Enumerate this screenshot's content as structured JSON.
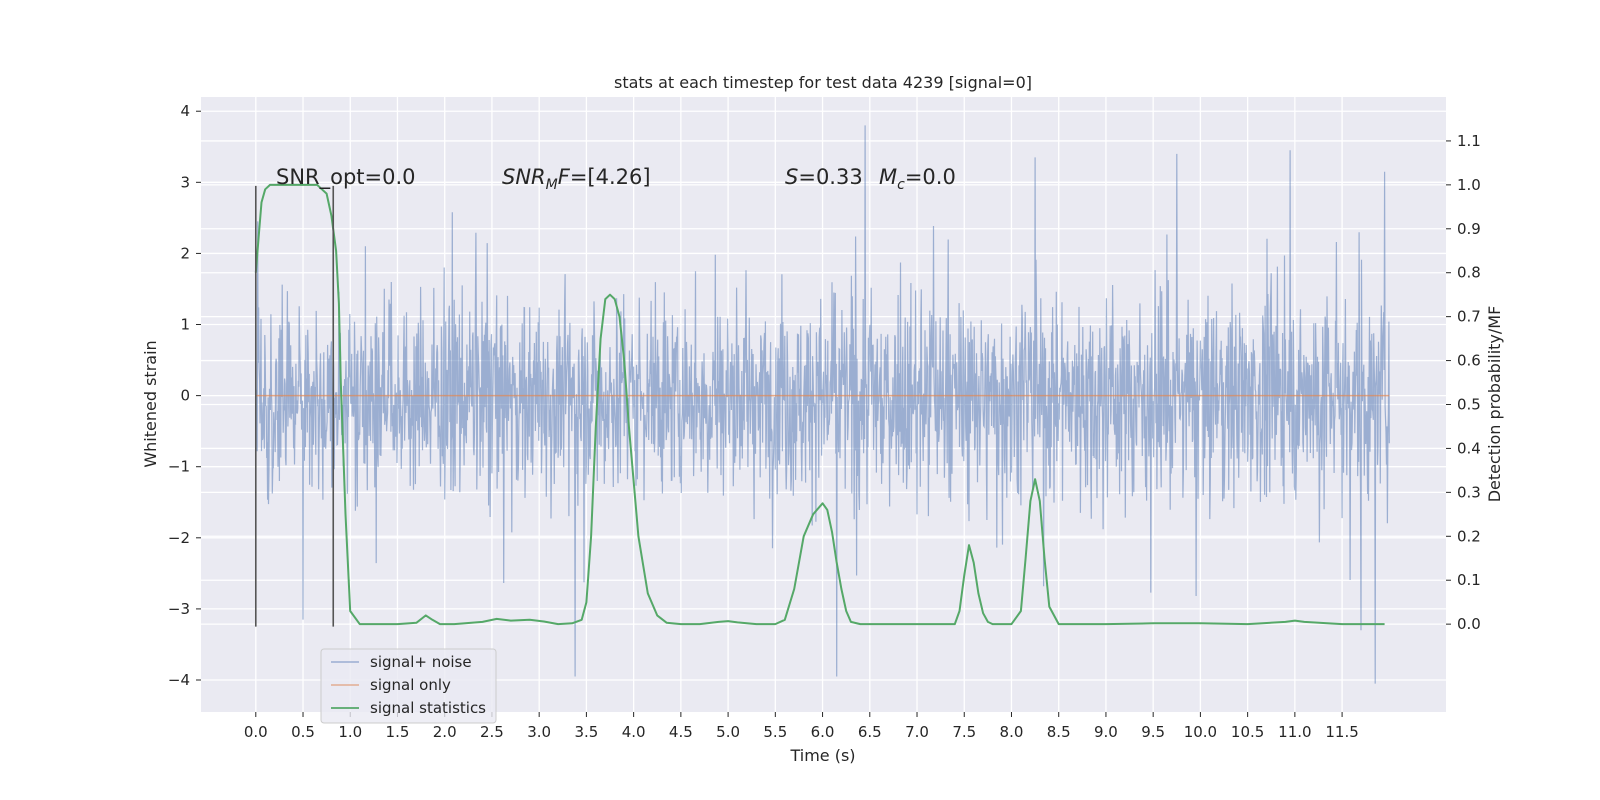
{
  "chart_data": {
    "type": "line",
    "title": "stats at each timestep for test data 4239 [signal=0]",
    "xlabel": "Time (s)",
    "ylabel": "Whitened strain",
    "y2label": "Detection probability/MF",
    "xlim": [
      -0.58,
      12.6
    ],
    "ylim": [
      -4.45,
      4.2
    ],
    "y2lim": [
      -0.2,
      1.2
    ],
    "x_ticks": [
      0.0,
      0.5,
      1.0,
      1.5,
      2.0,
      2.5,
      3.0,
      3.5,
      4.0,
      4.5,
      5.0,
      5.5,
      6.0,
      6.5,
      7.0,
      7.5,
      8.0,
      8.5,
      9.0,
      9.5,
      10.0,
      10.5,
      11.0,
      11.5
    ],
    "x_tick_labels": [
      "0.0",
      "0.5",
      "1.0",
      "1.5",
      "2.0",
      "2.5",
      "3.0",
      "3.5",
      "4.0",
      "4.5",
      "5.0",
      "5.5",
      "6.0",
      "6.5",
      "7.0",
      "7.5",
      "8.0",
      "8.5",
      "9.0",
      "9.5",
      "10.0",
      "10.5",
      "11.0",
      "11.5"
    ],
    "y_ticks": [
      -4,
      -3,
      -2,
      -1,
      0,
      1,
      2,
      3,
      4
    ],
    "y_tick_labels": [
      "−4",
      "−3",
      "−2",
      "−1",
      "0",
      "1",
      "2",
      "3",
      "4"
    ],
    "y2_ticks": [
      0.0,
      0.1,
      0.2,
      0.3,
      0.4,
      0.5,
      0.6,
      0.7,
      0.8,
      0.9,
      1.0,
      1.1
    ],
    "y2_tick_labels": [
      "0.0",
      "0.1",
      "0.2",
      "0.3",
      "0.4",
      "0.5",
      "0.6",
      "0.7",
      "0.8",
      "0.9",
      "1.0",
      "1.1"
    ],
    "grid": true,
    "legend_position": "lower-left",
    "series": [
      {
        "name": "signal+ noise",
        "axis": "left",
        "style": "noise",
        "color": "#4c72b0",
        "x_range": [
          0.0,
          12.0
        ],
        "approx_envelope": [
          -2.2,
          2.2
        ],
        "notable_peaks": [
          [
            6.45,
            3.8
          ],
          [
            9.75,
            3.4
          ],
          [
            10.95,
            3.45
          ],
          [
            11.95,
            3.15
          ],
          [
            8.25,
            3.35
          ]
        ],
        "notable_troughs": [
          [
            3.38,
            -3.95
          ],
          [
            6.15,
            -3.95
          ],
          [
            11.85,
            -4.05
          ],
          [
            11.7,
            -3.3
          ],
          [
            0.5,
            -3.15
          ]
        ]
      },
      {
        "name": "signal only",
        "axis": "left",
        "style": "line",
        "color": "#dd8452",
        "x": [
          0.0,
          12.0
        ],
        "values": [
          0.0,
          0.0
        ]
      },
      {
        "name": "signal statistics",
        "axis": "right",
        "style": "line",
        "color": "#55a868",
        "x": [
          0.0,
          0.03,
          0.06,
          0.1,
          0.15,
          0.2,
          0.3,
          0.4,
          0.5,
          0.6,
          0.65,
          0.7,
          0.75,
          0.8,
          0.85,
          0.88,
          0.9,
          0.95,
          1.0,
          1.1,
          1.3,
          1.5,
          1.7,
          1.8,
          1.87,
          1.95,
          2.1,
          2.4,
          2.55,
          2.7,
          2.9,
          3.05,
          3.2,
          3.35,
          3.45,
          3.5,
          3.55,
          3.6,
          3.65,
          3.7,
          3.75,
          3.8,
          3.85,
          3.9,
          3.95,
          4.05,
          4.15,
          4.25,
          4.35,
          4.5,
          4.7,
          4.9,
          5.0,
          5.1,
          5.3,
          5.5,
          5.6,
          5.7,
          5.8,
          5.9,
          6.0,
          6.05,
          6.1,
          6.15,
          6.2,
          6.25,
          6.3,
          6.4,
          6.6,
          7.0,
          7.4,
          7.45,
          7.5,
          7.55,
          7.6,
          7.65,
          7.7,
          7.75,
          7.8,
          7.9,
          8.0,
          8.1,
          8.15,
          8.2,
          8.25,
          8.3,
          8.35,
          8.4,
          8.5,
          8.6,
          9.0,
          9.5,
          10.0,
          10.5,
          10.9,
          11.0,
          11.1,
          11.5,
          11.95
        ],
        "values": [
          0.8,
          0.88,
          0.96,
          0.99,
          1.0,
          1.0,
          1.0,
          1.0,
          1.0,
          1.0,
          1.0,
          0.99,
          0.98,
          0.93,
          0.85,
          0.73,
          0.55,
          0.25,
          0.03,
          0.0,
          0.0,
          0.0,
          0.003,
          0.02,
          0.01,
          0.0,
          0.0,
          0.005,
          0.012,
          0.008,
          0.01,
          0.006,
          0.0,
          0.002,
          0.01,
          0.05,
          0.2,
          0.45,
          0.65,
          0.74,
          0.75,
          0.74,
          0.7,
          0.6,
          0.45,
          0.2,
          0.07,
          0.02,
          0.003,
          0.0,
          0.0,
          0.005,
          0.007,
          0.004,
          0.0,
          0.0,
          0.01,
          0.08,
          0.2,
          0.25,
          0.275,
          0.26,
          0.21,
          0.14,
          0.08,
          0.03,
          0.005,
          0.0,
          0.0,
          0.0,
          0.0,
          0.03,
          0.11,
          0.18,
          0.14,
          0.07,
          0.025,
          0.005,
          0.0,
          0.0,
          0.0,
          0.03,
          0.15,
          0.28,
          0.33,
          0.28,
          0.15,
          0.04,
          0.0,
          0.0,
          0.0,
          0.002,
          0.002,
          0.0,
          0.005,
          0.008,
          0.005,
          0.0,
          0.0
        ]
      }
    ],
    "vertical_markers": [
      {
        "x": 0.0,
        "y_range": [
          -3.25,
          2.95
        ]
      },
      {
        "x": 0.82,
        "y_range": [
          -3.25,
          2.95
        ]
      }
    ],
    "annotations": [
      {
        "text": "SNR_opt=0.0",
        "italic": false
      },
      {
        "text": "SNR_MF=[4.26]",
        "italic": true,
        "main": "SNR",
        "sub": "M",
        "rest": "F=[4.26]"
      },
      {
        "text": "S=0.33",
        "italic": true,
        "main": "S",
        "rest": "=0.33"
      },
      {
        "text": "M_c=0.0",
        "italic": true,
        "main": "M",
        "sub": "c",
        "rest": "=0.0"
      }
    ],
    "colors": {
      "background": "#eaeaf2",
      "grid": "#ffffff",
      "noise": "#4c72b0",
      "signal": "#dd8452",
      "statistics": "#55a868",
      "marker": "#555555"
    }
  }
}
